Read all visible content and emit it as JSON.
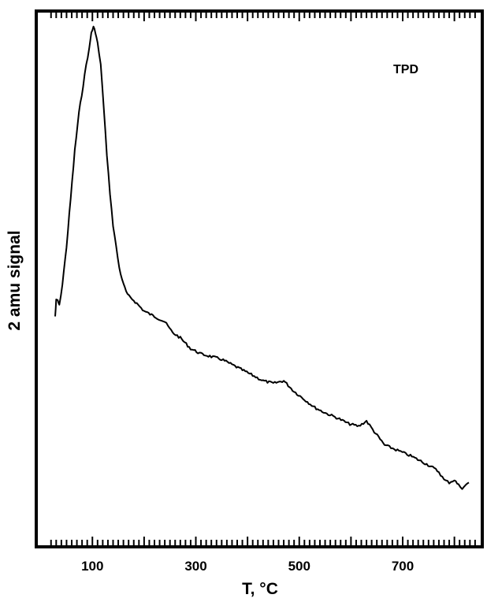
{
  "chart_data": {
    "type": "line",
    "xlabel": "T, °C",
    "ylabel": "2 amu signal",
    "annotation": "TPD",
    "xlim": [
      0,
      880
    ],
    "x_tick_labels": [
      100,
      300,
      500,
      700
    ],
    "y_numeric_scale": "arbitrary (no tick labels)",
    "ylim": [
      0,
      100
    ],
    "grid": false,
    "series": [
      {
        "color": "#000000",
        "points": [
          [
            28,
            43
          ],
          [
            30,
            46
          ],
          [
            33,
            46
          ],
          [
            36,
            45
          ],
          [
            42,
            49
          ],
          [
            50,
            56
          ],
          [
            58,
            65
          ],
          [
            66,
            74
          ],
          [
            74,
            81
          ],
          [
            82,
            86
          ],
          [
            88,
            90
          ],
          [
            94,
            93
          ],
          [
            98,
            96
          ],
          [
            102,
            97
          ],
          [
            106,
            96
          ],
          [
            110,
            94
          ],
          [
            116,
            90
          ],
          [
            122,
            82
          ],
          [
            128,
            73
          ],
          [
            134,
            66
          ],
          [
            140,
            60
          ],
          [
            146,
            56
          ],
          [
            152,
            52
          ],
          [
            160,
            49
          ],
          [
            168,
            47
          ],
          [
            180,
            46
          ],
          [
            200,
            44
          ],
          [
            220,
            43
          ],
          [
            240,
            42
          ],
          [
            255,
            40
          ],
          [
            270,
            39
          ],
          [
            290,
            37
          ],
          [
            310,
            36
          ],
          [
            330,
            35.5
          ],
          [
            350,
            35
          ],
          [
            370,
            34
          ],
          [
            390,
            33
          ],
          [
            410,
            32
          ],
          [
            430,
            31
          ],
          [
            450,
            30.5
          ],
          [
            470,
            31
          ],
          [
            490,
            29
          ],
          [
            510,
            27.5
          ],
          [
            530,
            26
          ],
          [
            550,
            25
          ],
          [
            575,
            24
          ],
          [
            595,
            23
          ],
          [
            615,
            22.5
          ],
          [
            630,
            23.5
          ],
          [
            645,
            21.5
          ],
          [
            665,
            19
          ],
          [
            690,
            18
          ],
          [
            715,
            17
          ],
          [
            735,
            16
          ],
          [
            755,
            15
          ],
          [
            770,
            14
          ],
          [
            780,
            12.5
          ],
          [
            790,
            12
          ],
          [
            800,
            12.5
          ],
          [
            808,
            11.5
          ],
          [
            815,
            11
          ],
          [
            822,
            11.5
          ],
          [
            828,
            12
          ]
        ]
      }
    ]
  }
}
